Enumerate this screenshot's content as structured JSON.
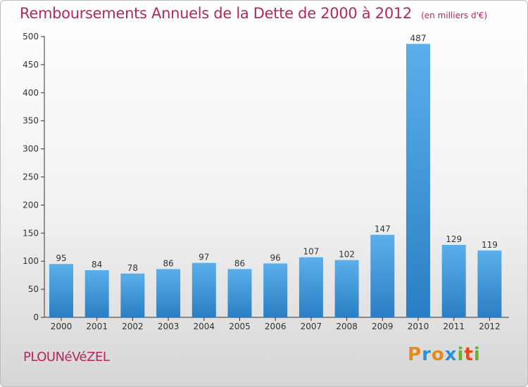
{
  "header": {
    "title": "Remboursements Annuels de la Dette de 2000 à 2012",
    "unit": "(en milliers d'€)"
  },
  "footer": {
    "commune": "PLOUNéVéZEL",
    "brand": "Proxiti",
    "brand_letters": [
      {
        "ch": "P",
        "color": "#e38c1e"
      },
      {
        "ch": "r",
        "color": "#2f8fd8"
      },
      {
        "ch": "o",
        "color": "#e38c1e"
      },
      {
        "ch": "x",
        "color": "#2f8fd8"
      },
      {
        "ch": "i",
        "color": "#66b32e"
      },
      {
        "ch": "t",
        "color": "#e34a1e"
      },
      {
        "ch": "i",
        "color": "#66b32e"
      }
    ]
  },
  "colors": {
    "accent": "#b5265f",
    "bar_light": "#5aafea",
    "bar_dark": "#2a7fc4"
  },
  "chart_data": {
    "type": "bar",
    "title": "Remboursements Annuels de la Dette de 2000 à 2012",
    "subtitle": "(en milliers d'€)",
    "categories": [
      "2000",
      "2001",
      "2002",
      "2003",
      "2004",
      "2005",
      "2006",
      "2007",
      "2008",
      "2009",
      "2010",
      "2011",
      "2012"
    ],
    "values": [
      95,
      84,
      78,
      86,
      97,
      86,
      96,
      107,
      102,
      147,
      487,
      129,
      119
    ],
    "ylim": [
      0,
      500
    ],
    "yticks": [
      0,
      50,
      100,
      150,
      200,
      250,
      300,
      350,
      400,
      450,
      500
    ],
    "grid": false,
    "legend": "none"
  }
}
